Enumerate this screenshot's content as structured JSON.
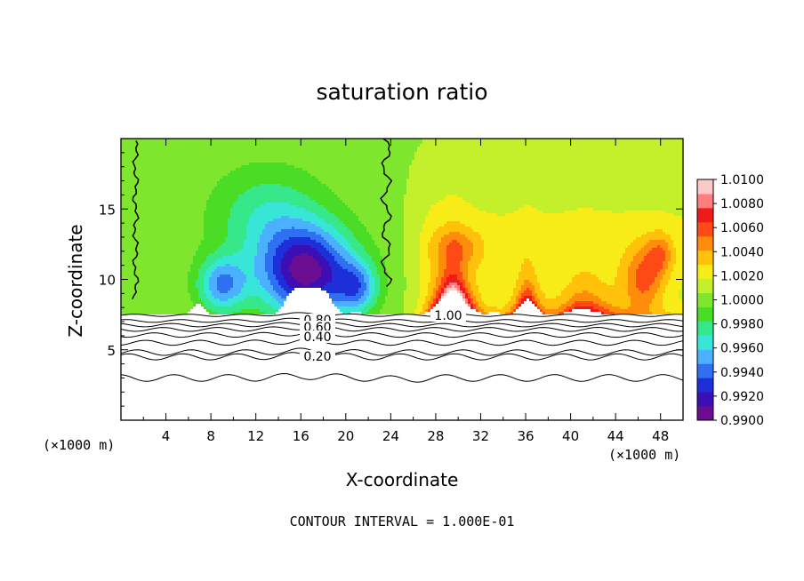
{
  "chart_data": {
    "type": "heatmap",
    "title": "saturation ratio",
    "xlabel": "X-coordinate",
    "ylabel": "Z-coordinate",
    "x_unit_left": "(×1000 m)",
    "x_unit_right": "(×1000 m)",
    "footer": "CONTOUR INTERVAL = 1.000E-01",
    "xlim": [
      0,
      50
    ],
    "ylim": [
      0,
      20
    ],
    "x_ticks": [
      4,
      8,
      12,
      16,
      20,
      24,
      28,
      32,
      36,
      40,
      44,
      48
    ],
    "y_ticks": [
      5,
      10,
      15
    ],
    "colorbar": {
      "ticks": [
        "1.0100",
        "1.0080",
        "1.0060",
        "1.0040",
        "1.0020",
        "1.0000",
        "0.9980",
        "0.9960",
        "0.9940",
        "0.9920",
        "0.9900"
      ],
      "range": [
        0.99,
        1.01
      ]
    },
    "colors": [
      "#6a0d91",
      "#3c0fb4",
      "#1d2fd8",
      "#2f6ff2",
      "#4ab0ff",
      "#38e6d8",
      "#36e88a",
      "#4bdc25",
      "#7ee62c",
      "#c3f02b",
      "#f7ec17",
      "#ffc10a",
      "#ff8c0b",
      "#ff4a16",
      "#f11a1a",
      "#ff7d7d",
      "#ffc8c8"
    ],
    "contour_labels": [
      "1.00",
      "0.80",
      "0.60",
      "0.40",
      "0.20"
    ],
    "contour_levels": [
      1.0,
      0.8,
      0.7,
      0.6,
      0.5,
      0.4,
      0.3,
      0.2
    ]
  }
}
